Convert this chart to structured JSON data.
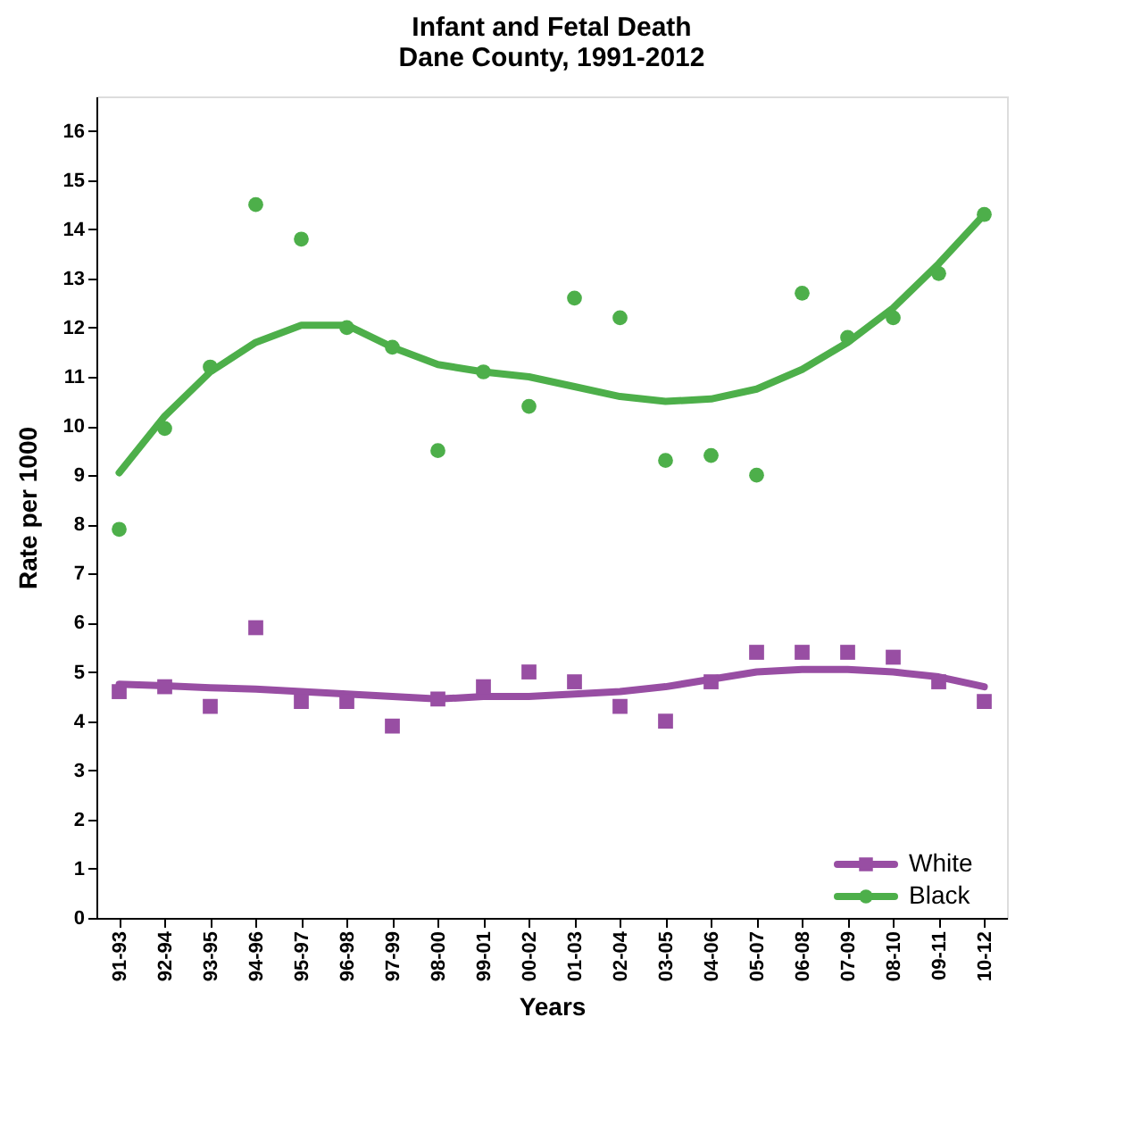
{
  "chart_data": {
    "type": "line",
    "title": "Infant and Fetal Death",
    "subtitle": "Dane County, 1991-2012",
    "xlabel": "Years",
    "ylabel": "Rate per 1000",
    "categories": [
      "91-93",
      "92-94",
      "93-95",
      "94-96",
      "95-97",
      "96-98",
      "97-99",
      "98-00",
      "99-01",
      "00-02",
      "01-03",
      "02-04",
      "03-05",
      "04-06",
      "05-07",
      "06-08",
      "07-09",
      "08-10",
      "09-11",
      "10-12"
    ],
    "series": [
      {
        "name": "White",
        "type": "scatter",
        "marker": "square",
        "color": "#984ea3",
        "values": [
          4.6,
          4.7,
          4.3,
          5.9,
          4.4,
          4.4,
          3.9,
          4.45,
          4.7,
          5.0,
          4.8,
          4.3,
          4.0,
          4.8,
          5.4,
          5.4,
          5.4,
          5.3,
          4.8,
          4.4
        ]
      },
      {
        "color": "#984ea3",
        "values": [
          4.75,
          4.72,
          4.68,
          4.65,
          4.6,
          4.55,
          4.5,
          4.45,
          4.5,
          4.5,
          4.55,
          4.6,
          4.7,
          4.85,
          5.0,
          5.05,
          5.05,
          5.0,
          4.9,
          4.7
        ]
      },
      {
        "name": "Black",
        "type": "scatter",
        "marker": "circle",
        "color": "#4daf4a",
        "values": [
          7.9,
          9.95,
          11.2,
          14.5,
          13.8,
          12.0,
          11.6,
          9.5,
          11.1,
          10.4,
          12.6,
          12.2,
          9.3,
          9.4,
          9.0,
          12.7,
          11.8,
          12.2,
          13.1,
          14.3
        ]
      },
      {
        "color": "#4daf4a",
        "values": [
          9.05,
          10.2,
          11.1,
          11.7,
          12.05,
          12.05,
          11.6,
          11.25,
          11.1,
          11.0,
          10.8,
          10.6,
          10.5,
          10.55,
          10.75,
          11.15,
          11.7,
          12.4,
          13.3,
          14.3
        ]
      }
    ],
    "ylim": [
      0,
      16.7
    ],
    "yticks": [
      0,
      1,
      2,
      3,
      4,
      5,
      6,
      7,
      8,
      9,
      10,
      11,
      12,
      13,
      14,
      15,
      16
    ],
    "grid": false,
    "legend": "bottom right",
    "line_style": "solid"
  }
}
